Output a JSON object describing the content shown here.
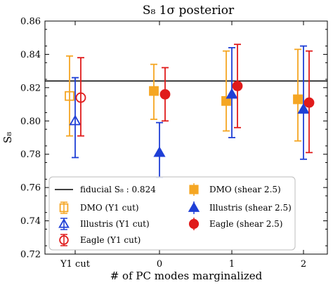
{
  "chart_data": {
    "type": "scatter",
    "title": "S₈ 1σ posterior",
    "xlabel": "# of PC modes marginalized",
    "ylabel": "S₈",
    "categories": [
      "Y1 cut",
      "0",
      "1",
      "2"
    ],
    "ylim": [
      0.72,
      0.86
    ],
    "yticks": [
      "0.72",
      "0.74",
      "0.76",
      "0.78",
      "0.80",
      "0.82",
      "0.84",
      "0.86"
    ],
    "reference_line": {
      "label": "fiducial S₈ : 0.824",
      "value": 0.824,
      "color": "#000000"
    },
    "legend_position": "lower-left",
    "series": [
      {
        "name": "DMO (Y1 cut)",
        "color": "#f5a623",
        "marker": "square-open",
        "category": "Y1 cut",
        "offset": -1,
        "points": [
          {
            "x": "Y1 cut",
            "y": 0.815,
            "low": 0.791,
            "high": 0.839
          }
        ]
      },
      {
        "name": "Illustris (Y1 cut)",
        "color": "#1f3fd6",
        "marker": "triangle-open",
        "category": "Y1 cut",
        "offset": 0,
        "points": [
          {
            "x": "Y1 cut",
            "y": 0.8,
            "low": 0.778,
            "high": 0.826
          }
        ]
      },
      {
        "name": "Eagle (Y1 cut)",
        "color": "#e01b1b",
        "marker": "circle-open",
        "category": "Y1 cut",
        "offset": 1,
        "points": [
          {
            "x": "Y1 cut",
            "y": 0.814,
            "low": 0.791,
            "high": 0.838
          }
        ]
      },
      {
        "name": "DMO (shear 2.5)",
        "color": "#f5a623",
        "marker": "square",
        "offset": -1,
        "points": [
          {
            "x": "0",
            "y": 0.818,
            "low": 0.801,
            "high": 0.834
          },
          {
            "x": "1",
            "y": 0.812,
            "low": 0.794,
            "high": 0.842
          },
          {
            "x": "2",
            "y": 0.813,
            "low": 0.788,
            "high": 0.843
          }
        ]
      },
      {
        "name": "Illustris (shear 2.5)",
        "color": "#1f3fd6",
        "marker": "triangle",
        "offset": 0,
        "points": [
          {
            "x": "0",
            "y": 0.781,
            "low": 0.766,
            "high": 0.799
          },
          {
            "x": "1",
            "y": 0.816,
            "low": 0.79,
            "high": 0.844
          },
          {
            "x": "2",
            "y": 0.807,
            "low": 0.777,
            "high": 0.845
          }
        ]
      },
      {
        "name": "Eagle (shear 2.5)",
        "color": "#e01b1b",
        "marker": "circle",
        "offset": 1,
        "points": [
          {
            "x": "0",
            "y": 0.816,
            "low": 0.8,
            "high": 0.832
          },
          {
            "x": "1",
            "y": 0.821,
            "low": 0.796,
            "high": 0.846
          },
          {
            "x": "2",
            "y": 0.811,
            "low": 0.781,
            "high": 0.842
          }
        ]
      }
    ],
    "grid": false
  }
}
